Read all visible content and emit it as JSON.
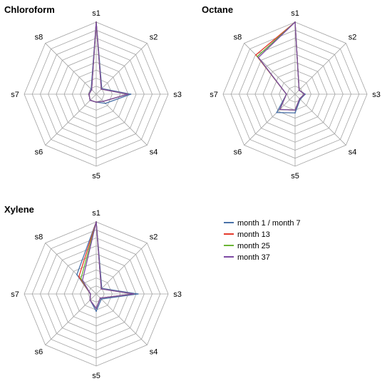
{
  "chart_data": {
    "type": "radar",
    "axes": [
      "s1",
      "s2",
      "s3",
      "s4",
      "s5",
      "s6",
      "s7",
      "s8"
    ],
    "rlim": [
      0,
      1
    ],
    "grid_levels": 9,
    "legend": {
      "placement": "bottom-right",
      "entries": [
        {
          "name": "month 1 / month 7",
          "color": "#4a72a8"
        },
        {
          "name": "month 13",
          "color": "#e53a2c"
        },
        {
          "name": "month 25",
          "color": "#6bb536"
        },
        {
          "name": "month 37",
          "color": "#7d4aa3"
        }
      ]
    },
    "panels": [
      {
        "title": "Chloroform",
        "series": [
          {
            "name": "month 1 / month 7",
            "values": [
              1.0,
              0.11,
              0.48,
              0.18,
              0.11,
              0.12,
              0.1,
              0.1
            ]
          },
          {
            "name": "month 13",
            "values": [
              1.0,
              0.1,
              0.44,
              0.14,
              0.11,
              0.12,
              0.1,
              0.09
            ]
          },
          {
            "name": "month 25",
            "values": [
              1.0,
              0.1,
              0.44,
              0.14,
              0.11,
              0.12,
              0.1,
              0.09
            ]
          },
          {
            "name": "month 37",
            "values": [
              1.0,
              0.1,
              0.44,
              0.14,
              0.11,
              0.12,
              0.1,
              0.09
            ]
          }
        ]
      },
      {
        "title": "Octane",
        "series": [
          {
            "name": "month 1 / month 7",
            "values": [
              1.0,
              0.08,
              0.14,
              0.1,
              0.26,
              0.36,
              0.12,
              0.74
            ]
          },
          {
            "name": "month 13",
            "values": [
              1.0,
              0.08,
              0.13,
              0.09,
              0.22,
              0.3,
              0.12,
              0.77
            ]
          },
          {
            "name": "month 25",
            "values": [
              1.0,
              0.08,
              0.13,
              0.09,
              0.22,
              0.3,
              0.12,
              0.74
            ]
          },
          {
            "name": "month 37",
            "values": [
              1.0,
              0.08,
              0.13,
              0.09,
              0.22,
              0.3,
              0.12,
              0.72
            ]
          }
        ]
      },
      {
        "title": "Xylene",
        "series": [
          {
            "name": "month 1 / month 7",
            "values": [
              1.0,
              0.11,
              0.58,
              0.1,
              0.24,
              0.12,
              0.08,
              0.38
            ]
          },
          {
            "name": "month 13",
            "values": [
              1.0,
              0.1,
              0.52,
              0.08,
              0.2,
              0.12,
              0.08,
              0.34
            ]
          },
          {
            "name": "month 25",
            "values": [
              1.0,
              0.1,
              0.52,
              0.08,
              0.2,
              0.12,
              0.08,
              0.3
            ]
          },
          {
            "name": "month 37",
            "values": [
              1.0,
              0.1,
              0.52,
              0.08,
              0.2,
              0.12,
              0.08,
              0.27
            ]
          }
        ]
      }
    ]
  }
}
